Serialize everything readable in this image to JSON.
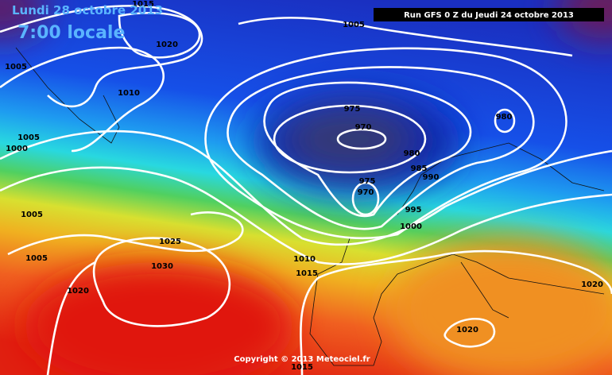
{
  "header": {
    "date": "Lundi 28 octobre 2013",
    "time": "7:00 locale",
    "run": "Run GFS 0 Z du Jeudi 24 octobre 2013"
  },
  "footer": {
    "copyright": "Copyright © 2013 Meteociel.fr"
  },
  "isobar_labels": [
    "1015",
    "1005",
    "1020",
    "1005",
    "1010",
    "975",
    "970",
    "980",
    "1005",
    "1000",
    "980",
    "985",
    "990",
    "975",
    "970",
    "995",
    "1000",
    "1005",
    "1025",
    "1005",
    "1010",
    "1030",
    "1015",
    "1020",
    "1020",
    "1020",
    "1015"
  ]
}
